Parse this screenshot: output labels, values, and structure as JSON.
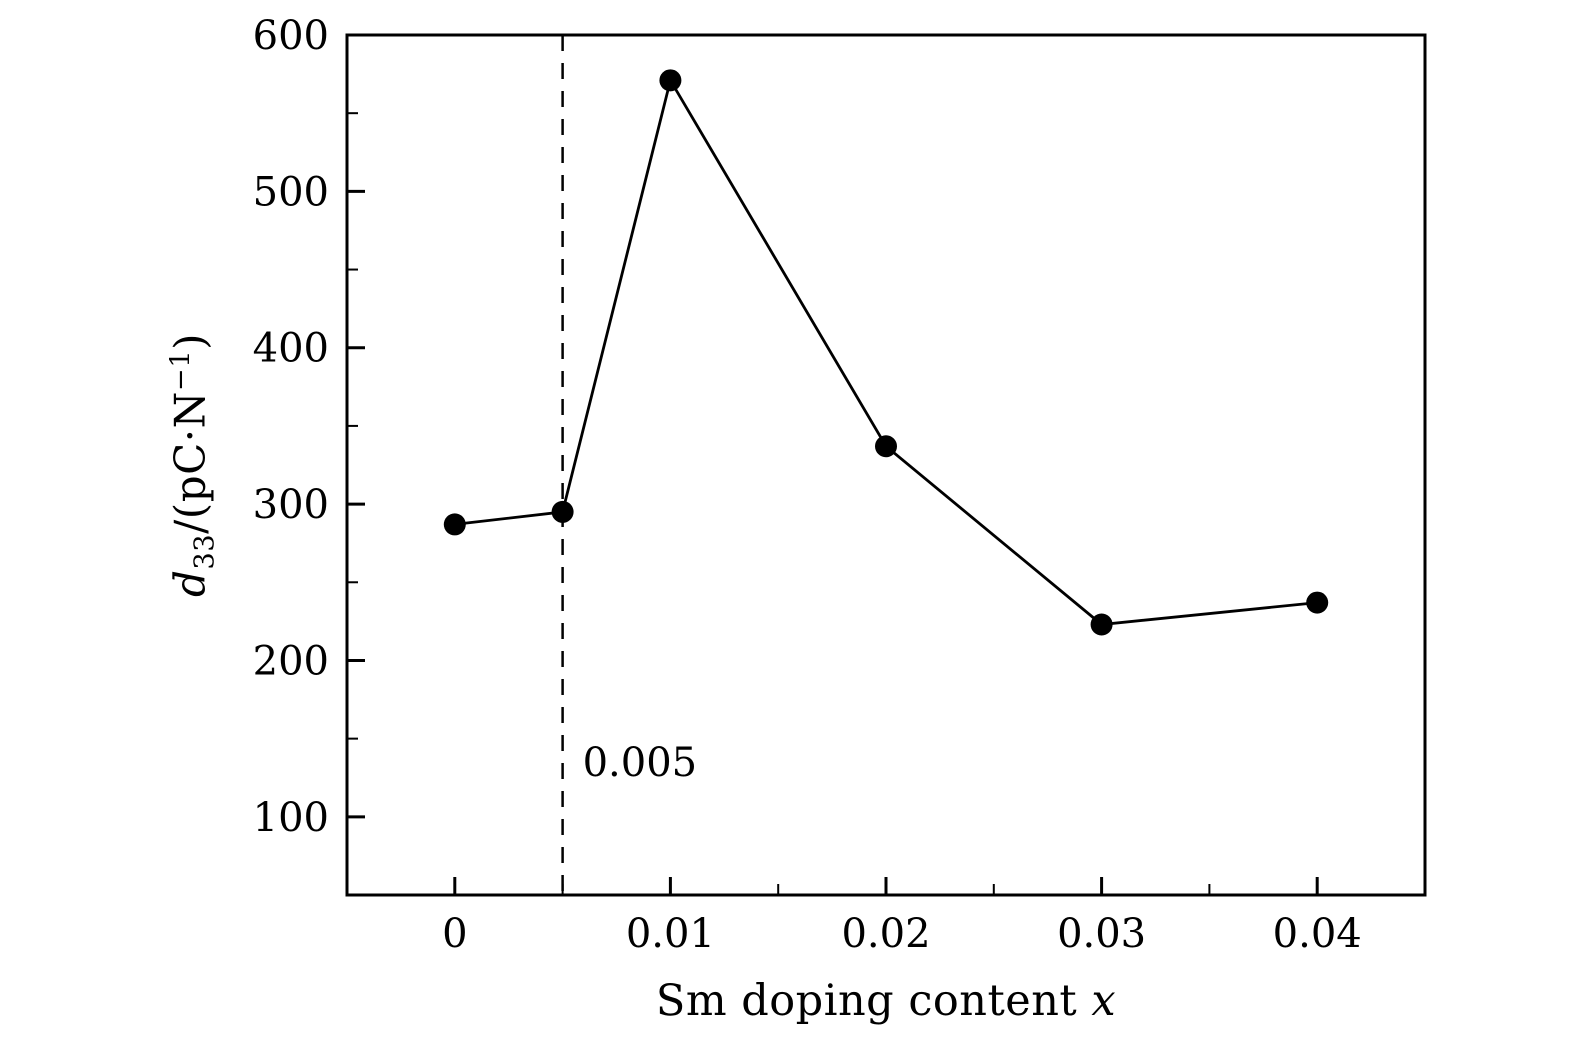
{
  "figure": {
    "background": "#ffffff"
  },
  "chart_data": {
    "type": "line",
    "x": [
      0,
      0.005,
      0.01,
      0.02,
      0.03,
      0.04
    ],
    "values": [
      287,
      295,
      571,
      337,
      223,
      237
    ],
    "series_name": "d33 vs Sm doping content",
    "xlabel_text": "Sm doping content ",
    "xlabel_var": "x",
    "ylabel_parts": {
      "var": "d",
      "sub": "33",
      "mid": "/(pC·N",
      "sup": "−1",
      "close": ")"
    },
    "xlim": [
      -0.005,
      0.045
    ],
    "ylim": [
      50,
      600
    ],
    "x_ticks": [
      0,
      0.01,
      0.02,
      0.03,
      0.04
    ],
    "x_tick_labels": [
      "0",
      "0.01",
      "0.02",
      "0.03",
      "0.04"
    ],
    "x_minor_step": 0.005,
    "y_ticks": [
      100,
      200,
      300,
      400,
      500,
      600
    ],
    "y_tick_labels": [
      "100",
      "200",
      "300",
      "400",
      "500",
      "600"
    ],
    "y_minor_step": 50,
    "grid": false,
    "legend": "none",
    "annotation": {
      "text": "0.005",
      "line_x": 0.005,
      "line_style": "dashed"
    },
    "line_color": "#000000",
    "marker_color": "#000000",
    "axis_color": "#000000"
  }
}
